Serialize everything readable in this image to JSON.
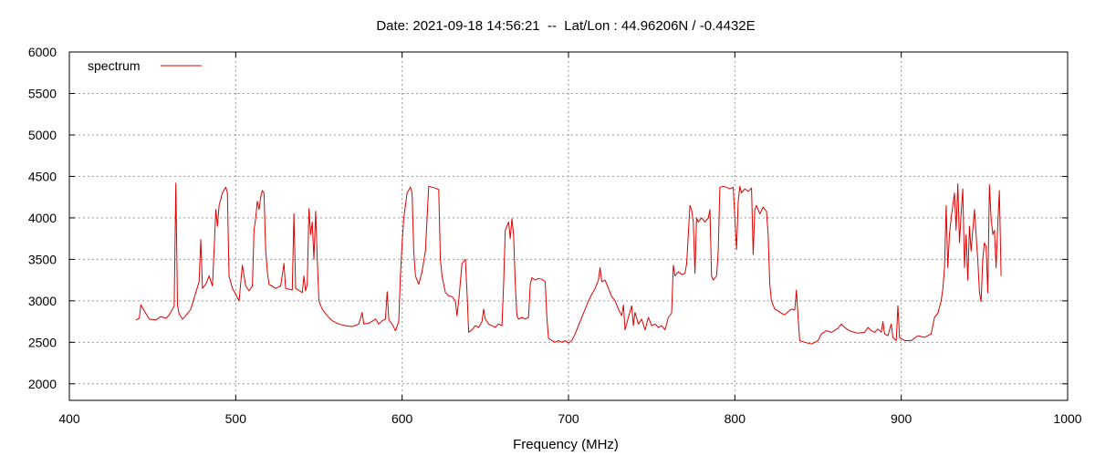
{
  "chart_data": {
    "type": "line",
    "title": "Date: 2021-09-18 14:56:21  --  Lat/Lon : 44.96206N / -0.4432E",
    "xlabel": "Frequency (MHz)",
    "ylabel": "",
    "xlim": [
      400,
      1000
    ],
    "ylim": [
      1800,
      6000
    ],
    "xticks": [
      400,
      500,
      600,
      700,
      800,
      900,
      1000
    ],
    "yticks": [
      2000,
      2500,
      3000,
      3500,
      4000,
      4500,
      5000,
      5500,
      6000
    ],
    "grid": true,
    "legend": "top-left",
    "series": [
      {
        "name": "spectrum",
        "color": "#e00000",
        "points": [
          [
            440,
            2770
          ],
          [
            442,
            2790
          ],
          [
            443,
            2950
          ],
          [
            445,
            2880
          ],
          [
            448,
            2780
          ],
          [
            452,
            2770
          ],
          [
            455,
            2810
          ],
          [
            458,
            2790
          ],
          [
            460,
            2830
          ],
          [
            462,
            2900
          ],
          [
            463,
            2940
          ],
          [
            464,
            4420
          ],
          [
            465,
            2950
          ],
          [
            466,
            2840
          ],
          [
            468,
            2780
          ],
          [
            470,
            2820
          ],
          [
            473,
            2900
          ],
          [
            476,
            3100
          ],
          [
            478,
            3230
          ],
          [
            479,
            3740
          ],
          [
            480,
            3150
          ],
          [
            482,
            3200
          ],
          [
            484,
            3300
          ],
          [
            486,
            3180
          ],
          [
            487,
            3600
          ],
          [
            488,
            4100
          ],
          [
            489,
            3900
          ],
          [
            490,
            4150
          ],
          [
            492,
            4300
          ],
          [
            494,
            4370
          ],
          [
            495,
            4300
          ],
          [
            496,
            3300
          ],
          [
            498,
            3150
          ],
          [
            500,
            3080
          ],
          [
            502,
            3000
          ],
          [
            504,
            3430
          ],
          [
            506,
            3180
          ],
          [
            508,
            3120
          ],
          [
            510,
            3180
          ],
          [
            511,
            3850
          ],
          [
            512,
            4000
          ],
          [
            513,
            4200
          ],
          [
            514,
            4100
          ],
          [
            515,
            4250
          ],
          [
            516,
            4330
          ],
          [
            517,
            4300
          ],
          [
            518,
            3600
          ],
          [
            519,
            3350
          ],
          [
            520,
            3200
          ],
          [
            524,
            3150
          ],
          [
            527,
            3180
          ],
          [
            529,
            3450
          ],
          [
            530,
            3150
          ],
          [
            534,
            3130
          ],
          [
            535,
            4050
          ],
          [
            536,
            3150
          ],
          [
            540,
            3100
          ],
          [
            541,
            3300
          ],
          [
            542,
            3120
          ],
          [
            543,
            3200
          ],
          [
            544,
            4110
          ],
          [
            545,
            3800
          ],
          [
            546,
            3950
          ],
          [
            547,
            3500
          ],
          [
            548,
            4080
          ],
          [
            549,
            3500
          ],
          [
            550,
            3000
          ],
          [
            552,
            2900
          ],
          [
            555,
            2820
          ],
          [
            558,
            2760
          ],
          [
            562,
            2720
          ],
          [
            566,
            2700
          ],
          [
            570,
            2690
          ],
          [
            574,
            2720
          ],
          [
            576,
            2860
          ],
          [
            577,
            2720
          ],
          [
            580,
            2730
          ],
          [
            584,
            2780
          ],
          [
            586,
            2720
          ],
          [
            588,
            2760
          ],
          [
            590,
            2780
          ],
          [
            591,
            3110
          ],
          [
            592,
            2770
          ],
          [
            594,
            2720
          ],
          [
            596,
            2640
          ],
          [
            598,
            2750
          ],
          [
            599,
            3300
          ],
          [
            600,
            3700
          ],
          [
            601,
            4000
          ],
          [
            603,
            4300
          ],
          [
            605,
            4370
          ],
          [
            606,
            4300
          ],
          [
            607,
            3600
          ],
          [
            608,
            3300
          ],
          [
            610,
            3200
          ],
          [
            612,
            3350
          ],
          [
            614,
            3600
          ],
          [
            616,
            4380
          ],
          [
            618,
            4370
          ],
          [
            620,
            4360
          ],
          [
            622,
            4340
          ],
          [
            623,
            3500
          ],
          [
            624,
            3300
          ],
          [
            626,
            3100
          ],
          [
            628,
            3060
          ],
          [
            630,
            3050
          ],
          [
            632,
            3000
          ],
          [
            633,
            2820
          ],
          [
            634,
            3000
          ],
          [
            636,
            3450
          ],
          [
            638,
            3500
          ],
          [
            639,
            3100
          ],
          [
            640,
            2620
          ],
          [
            642,
            2650
          ],
          [
            644,
            2700
          ],
          [
            646,
            2680
          ],
          [
            648,
            2750
          ],
          [
            649,
            2900
          ],
          [
            650,
            2780
          ],
          [
            652,
            2720
          ],
          [
            654,
            2700
          ],
          [
            656,
            2680
          ],
          [
            658,
            2720
          ],
          [
            660,
            2700
          ],
          [
            661,
            3200
          ],
          [
            662,
            3850
          ],
          [
            664,
            3950
          ],
          [
            665,
            3750
          ],
          [
            666,
            3990
          ],
          [
            667,
            3800
          ],
          [
            668,
            3200
          ],
          [
            669,
            2820
          ],
          [
            670,
            2780
          ],
          [
            672,
            2800
          ],
          [
            674,
            2780
          ],
          [
            676,
            2800
          ],
          [
            677,
            3200
          ],
          [
            678,
            3280
          ],
          [
            680,
            3250
          ],
          [
            682,
            3270
          ],
          [
            684,
            3260
          ],
          [
            686,
            3230
          ],
          [
            687,
            2800
          ],
          [
            688,
            2550
          ],
          [
            690,
            2520
          ],
          [
            692,
            2500
          ],
          [
            694,
            2520
          ],
          [
            696,
            2500
          ],
          [
            698,
            2520
          ],
          [
            700,
            2490
          ],
          [
            702,
            2520
          ],
          [
            704,
            2600
          ],
          [
            706,
            2700
          ],
          [
            708,
            2800
          ],
          [
            710,
            2900
          ],
          [
            712,
            3000
          ],
          [
            714,
            3080
          ],
          [
            716,
            3150
          ],
          [
            718,
            3250
          ],
          [
            719,
            3400
          ],
          [
            720,
            3230
          ],
          [
            722,
            3250
          ],
          [
            724,
            3150
          ],
          [
            726,
            3050
          ],
          [
            728,
            3000
          ],
          [
            730,
            2900
          ],
          [
            732,
            2820
          ],
          [
            733,
            2950
          ],
          [
            734,
            2650
          ],
          [
            736,
            2800
          ],
          [
            738,
            2940
          ],
          [
            739,
            2700
          ],
          [
            740,
            2860
          ],
          [
            742,
            2720
          ],
          [
            744,
            2780
          ],
          [
            746,
            2650
          ],
          [
            748,
            2800
          ],
          [
            750,
            2700
          ],
          [
            752,
            2720
          ],
          [
            754,
            2680
          ],
          [
            756,
            2700
          ],
          [
            758,
            2650
          ],
          [
            760,
            2800
          ],
          [
            762,
            2850
          ],
          [
            763,
            3430
          ],
          [
            764,
            3300
          ],
          [
            766,
            3350
          ],
          [
            768,
            3320
          ],
          [
            770,
            3330
          ],
          [
            771,
            3450
          ],
          [
            772,
            3800
          ],
          [
            773,
            4150
          ],
          [
            774,
            4100
          ],
          [
            775,
            3950
          ],
          [
            776,
            3330
          ],
          [
            777,
            4000
          ],
          [
            778,
            3950
          ],
          [
            780,
            4000
          ],
          [
            782,
            3950
          ],
          [
            784,
            4000
          ],
          [
            785,
            4100
          ],
          [
            786,
            3300
          ],
          [
            787,
            3250
          ],
          [
            789,
            3300
          ],
          [
            790,
            3600
          ],
          [
            791,
            4370
          ],
          [
            793,
            4380
          ],
          [
            795,
            4370
          ],
          [
            797,
            4350
          ],
          [
            799,
            4370
          ],
          [
            800,
            4000
          ],
          [
            801,
            3620
          ],
          [
            802,
            4200
          ],
          [
            803,
            4380
          ],
          [
            804,
            4300
          ],
          [
            806,
            4350
          ],
          [
            808,
            4320
          ],
          [
            810,
            4360
          ],
          [
            811,
            3560
          ],
          [
            812,
            4100
          ],
          [
            813,
            4150
          ],
          [
            815,
            4050
          ],
          [
            817,
            4130
          ],
          [
            819,
            4080
          ],
          [
            820,
            3800
          ],
          [
            821,
            3200
          ],
          [
            822,
            3000
          ],
          [
            824,
            2900
          ],
          [
            826,
            2880
          ],
          [
            828,
            2850
          ],
          [
            830,
            2830
          ],
          [
            832,
            2870
          ],
          [
            834,
            2900
          ],
          [
            836,
            2890
          ],
          [
            837,
            3130
          ],
          [
            838,
            2800
          ],
          [
            839,
            2520
          ],
          [
            842,
            2500
          ],
          [
            846,
            2480
          ],
          [
            850,
            2520
          ],
          [
            852,
            2600
          ],
          [
            855,
            2640
          ],
          [
            858,
            2620
          ],
          [
            862,
            2670
          ],
          [
            864,
            2720
          ],
          [
            866,
            2680
          ],
          [
            868,
            2650
          ],
          [
            870,
            2630
          ],
          [
            874,
            2610
          ],
          [
            878,
            2620
          ],
          [
            880,
            2680
          ],
          [
            882,
            2640
          ],
          [
            884,
            2620
          ],
          [
            886,
            2660
          ],
          [
            888,
            2620
          ],
          [
            889,
            2750
          ],
          [
            890,
            2600
          ],
          [
            892,
            2580
          ],
          [
            894,
            2720
          ],
          [
            895,
            2560
          ],
          [
            897,
            2520
          ],
          [
            898,
            2940
          ],
          [
            899,
            2560
          ],
          [
            902,
            2520
          ],
          [
            906,
            2520
          ],
          [
            910,
            2580
          ],
          [
            914,
            2560
          ],
          [
            918,
            2600
          ],
          [
            920,
            2800
          ],
          [
            922,
            2850
          ],
          [
            924,
            3000
          ],
          [
            925,
            3150
          ],
          [
            926,
            3400
          ],
          [
            927,
            4150
          ],
          [
            928,
            3400
          ],
          [
            929,
            3800
          ],
          [
            930,
            4000
          ],
          [
            932,
            4300
          ],
          [
            933,
            3850
          ],
          [
            934,
            4410
          ],
          [
            935,
            3700
          ],
          [
            936,
            4050
          ],
          [
            937,
            4350
          ],
          [
            938,
            3400
          ],
          [
            939,
            3800
          ],
          [
            940,
            3250
          ],
          [
            941,
            3900
          ],
          [
            942,
            3600
          ],
          [
            944,
            4100
          ],
          [
            945,
            3800
          ],
          [
            946,
            3500
          ],
          [
            947,
            3100
          ],
          [
            948,
            2990
          ],
          [
            949,
            3500
          ],
          [
            950,
            3700
          ],
          [
            951,
            3650
          ],
          [
            952,
            3100
          ],
          [
            953,
            4400
          ],
          [
            954,
            4000
          ],
          [
            955,
            3800
          ],
          [
            956,
            3850
          ],
          [
            957,
            3400
          ],
          [
            958,
            3900
          ],
          [
            959,
            4330
          ],
          [
            960,
            3300
          ]
        ]
      }
    ]
  }
}
